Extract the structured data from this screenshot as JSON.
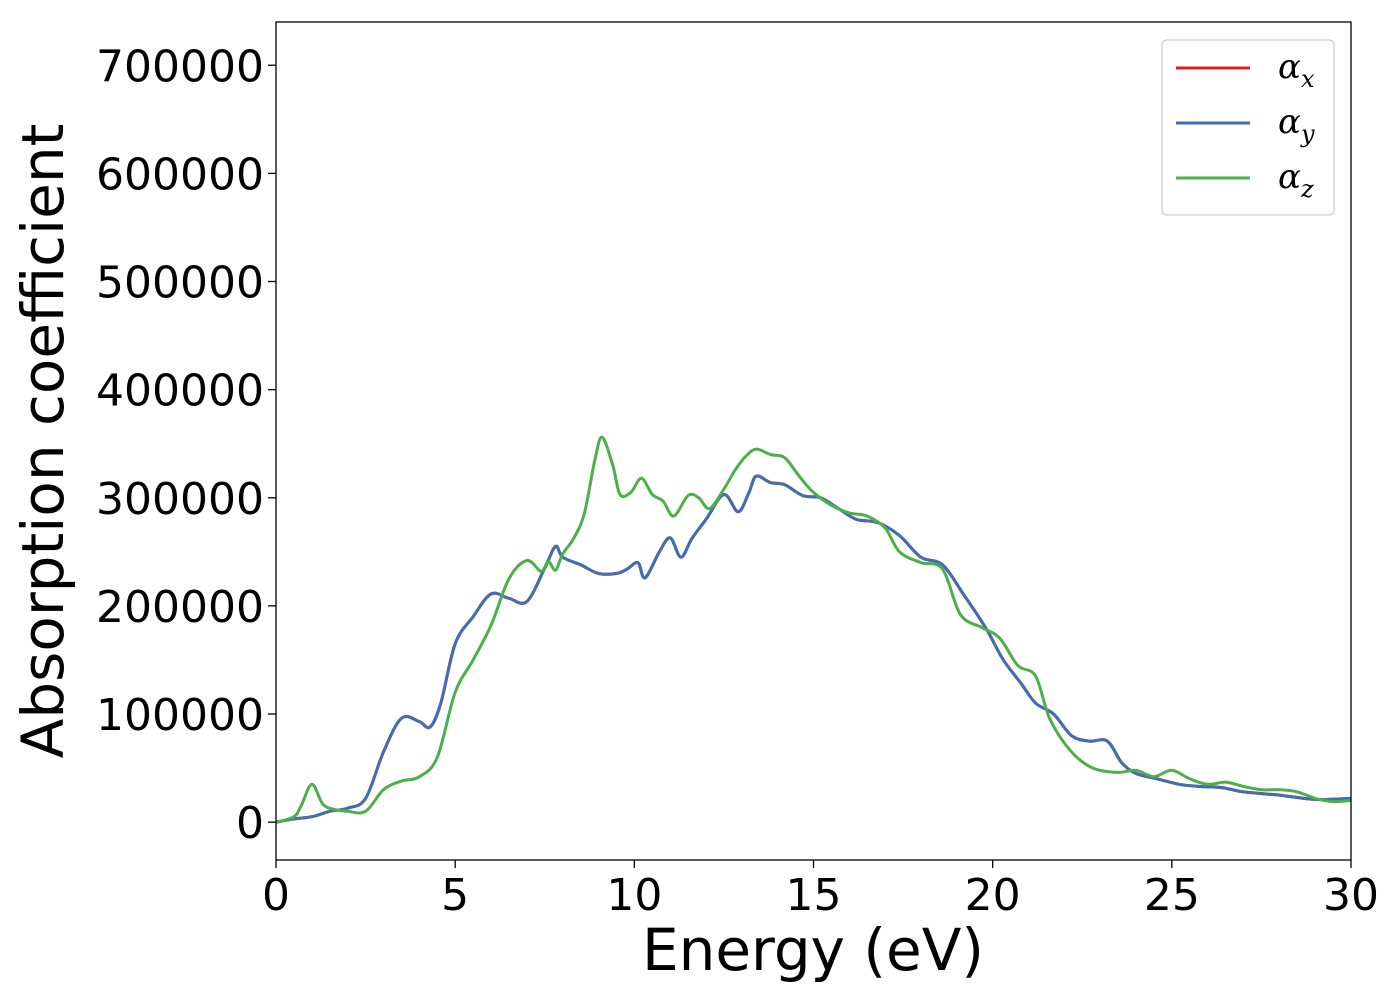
{
  "chart_data": {
    "type": "line",
    "xlabel": "Energy (eV)",
    "ylabel": "Absorption coefficient",
    "xlim": [
      0,
      30
    ],
    "ylim": [
      -35000,
      740000
    ],
    "xticks": [
      0,
      5,
      10,
      15,
      20,
      25,
      30
    ],
    "xtick_labels": [
      "0",
      "5",
      "10",
      "15",
      "20",
      "25",
      "30"
    ],
    "yticks": [
      0,
      100000,
      200000,
      300000,
      400000,
      500000,
      600000,
      700000
    ],
    "ytick_labels": [
      "0",
      "100000",
      "200000",
      "300000",
      "400000",
      "500000",
      "600000",
      "700000"
    ],
    "grid": false,
    "legend_position": "top-right",
    "series": [
      {
        "name": "α_x",
        "symbol": "α",
        "subscript": "x",
        "color": "#e41a1c",
        "x": [
          0,
          0.5,
          1.0,
          1.5,
          2.0,
          2.5,
          3.0,
          3.5,
          4.0,
          4.3,
          4.6,
          5.0,
          5.5,
          6.0,
          6.5,
          7.0,
          7.5,
          7.8,
          8.0,
          8.5,
          9.0,
          9.5,
          9.8,
          10.1,
          10.3,
          10.7,
          11.0,
          11.3,
          11.6,
          12.0,
          12.5,
          12.9,
          13.2,
          13.4,
          13.8,
          14.2,
          14.7,
          15.2,
          15.7,
          16.2,
          16.8,
          17.4,
          18.0,
          18.6,
          19.2,
          19.8,
          20.3,
          20.8,
          21.2,
          21.7,
          22.2,
          22.7,
          23.2,
          23.6,
          24.0,
          24.6,
          25.2,
          25.8,
          26.4,
          27.0,
          28.0,
          29.0,
          30.0
        ],
        "y": [
          0,
          3000,
          5000,
          10000,
          13000,
          22000,
          65000,
          96000,
          93000,
          88000,
          110000,
          165000,
          190000,
          211000,
          207000,
          204000,
          235000,
          255000,
          245000,
          238000,
          230000,
          230000,
          234000,
          240000,
          226000,
          250000,
          263000,
          245000,
          262000,
          280000,
          303000,
          287000,
          305000,
          320000,
          314000,
          312000,
          302000,
          300000,
          290000,
          280000,
          277000,
          265000,
          245000,
          238000,
          210000,
          180000,
          150000,
          128000,
          110000,
          100000,
          80000,
          75000,
          75000,
          55000,
          45000,
          40000,
          35000,
          33000,
          32000,
          28000,
          25000,
          21000,
          22000
        ]
      },
      {
        "name": "α_y",
        "symbol": "α",
        "subscript": "y",
        "color": "#3f6fb0",
        "x": [
          0,
          0.5,
          1.0,
          1.5,
          2.0,
          2.5,
          3.0,
          3.5,
          4.0,
          4.3,
          4.6,
          5.0,
          5.5,
          6.0,
          6.5,
          7.0,
          7.5,
          7.8,
          8.0,
          8.5,
          9.0,
          9.5,
          9.8,
          10.1,
          10.3,
          10.7,
          11.0,
          11.3,
          11.6,
          12.0,
          12.5,
          12.9,
          13.2,
          13.4,
          13.8,
          14.2,
          14.7,
          15.2,
          15.7,
          16.2,
          16.8,
          17.4,
          18.0,
          18.6,
          19.2,
          19.8,
          20.3,
          20.8,
          21.2,
          21.7,
          22.2,
          22.7,
          23.2,
          23.6,
          24.0,
          24.6,
          25.2,
          25.8,
          26.4,
          27.0,
          28.0,
          29.0,
          30.0
        ],
        "y": [
          0,
          3000,
          5000,
          10000,
          13000,
          22000,
          65000,
          96000,
          93000,
          88000,
          110000,
          165000,
          190000,
          211000,
          207000,
          204000,
          235000,
          255000,
          245000,
          238000,
          230000,
          230000,
          234000,
          240000,
          226000,
          250000,
          263000,
          245000,
          262000,
          280000,
          303000,
          287000,
          305000,
          320000,
          314000,
          312000,
          302000,
          300000,
          290000,
          280000,
          277000,
          265000,
          245000,
          238000,
          210000,
          180000,
          150000,
          128000,
          110000,
          100000,
          80000,
          75000,
          75000,
          55000,
          45000,
          40000,
          35000,
          33000,
          32000,
          28000,
          25000,
          21000,
          22000
        ]
      },
      {
        "name": "α_z",
        "symbol": "α",
        "subscript": "z",
        "color": "#4daf4a",
        "x": [
          0,
          0.5,
          0.7,
          1.0,
          1.3,
          1.6,
          2.0,
          2.5,
          3.0,
          3.5,
          4.0,
          4.5,
          5.0,
          5.5,
          6.0,
          6.5,
          7.0,
          7.4,
          7.6,
          7.8,
          8.0,
          8.3,
          8.6,
          8.9,
          9.1,
          9.4,
          9.6,
          9.9,
          10.2,
          10.5,
          10.8,
          11.1,
          11.5,
          11.8,
          12.1,
          12.5,
          12.8,
          13.1,
          13.4,
          13.8,
          14.2,
          14.6,
          15.0,
          15.5,
          16.0,
          16.5,
          17.0,
          17.4,
          18.0,
          18.6,
          19.1,
          19.7,
          20.2,
          20.7,
          21.2,
          21.6,
          22.2,
          22.8,
          23.5,
          24.0,
          24.5,
          25.0,
          25.5,
          26.0,
          26.5,
          27.0,
          27.5,
          28.0,
          28.5,
          29.0,
          29.5,
          30.0
        ],
        "y": [
          0,
          5000,
          15000,
          35000,
          17000,
          12000,
          10000,
          10000,
          30000,
          38000,
          42000,
          60000,
          120000,
          150000,
          182000,
          225000,
          242000,
          232000,
          241000,
          233000,
          248000,
          262000,
          285000,
          335000,
          356000,
          330000,
          303000,
          305000,
          318000,
          303000,
          297000,
          283000,
          302000,
          300000,
          290000,
          308000,
          325000,
          338000,
          345000,
          340000,
          337000,
          320000,
          305000,
          293000,
          286000,
          283000,
          272000,
          250000,
          240000,
          234000,
          192000,
          180000,
          170000,
          145000,
          135000,
          95000,
          65000,
          50000,
          46000,
          48000,
          42000,
          48000,
          40000,
          35000,
          37000,
          33000,
          30000,
          30000,
          28000,
          22000,
          19000,
          20000
        ]
      }
    ]
  }
}
